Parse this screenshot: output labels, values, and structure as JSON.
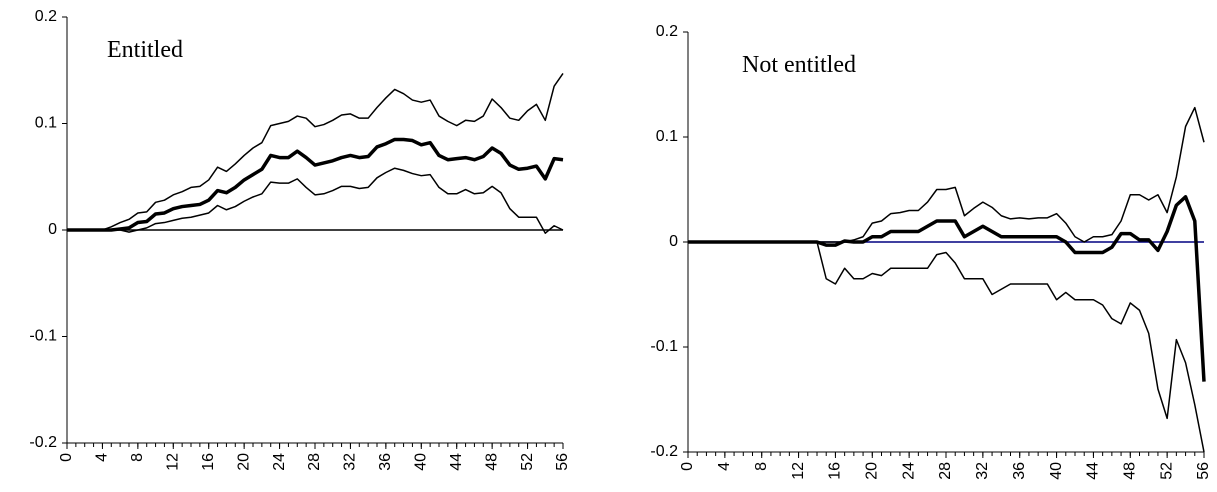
{
  "chart_data": [
    {
      "type": "line",
      "annotation": "Entitled",
      "zero_line_color": "#000000",
      "x": [
        0,
        1,
        2,
        3,
        4,
        5,
        6,
        7,
        8,
        9,
        10,
        11,
        12,
        13,
        14,
        15,
        16,
        17,
        18,
        19,
        20,
        21,
        22,
        23,
        24,
        25,
        26,
        27,
        28,
        29,
        30,
        31,
        32,
        33,
        34,
        35,
        36,
        37,
        38,
        39,
        40,
        41,
        42,
        43,
        44,
        45,
        46,
        47,
        48,
        49,
        50,
        51,
        52,
        53,
        54,
        55,
        56
      ],
      "xlim": [
        0,
        56
      ],
      "xticks": [
        0,
        4,
        8,
        12,
        16,
        20,
        24,
        28,
        32,
        36,
        40,
        44,
        48,
        52,
        56
      ],
      "xminorticks": [
        0,
        1,
        2,
        3,
        4,
        5,
        6,
        7,
        8,
        9,
        10,
        11,
        12,
        13,
        14,
        15,
        16,
        17,
        18,
        19,
        20,
        21,
        22,
        23,
        24,
        25,
        26,
        27,
        28,
        29,
        30,
        31,
        32,
        33,
        34,
        35,
        36,
        37,
        38,
        39,
        40,
        41,
        42,
        43,
        44,
        45,
        46,
        47,
        48,
        49,
        50,
        51,
        52,
        53,
        54,
        55,
        56
      ],
      "ylim": [
        -0.2,
        0.2
      ],
      "yticks": [
        -0.2,
        -0.1,
        0,
        0.1,
        0.2
      ],
      "series": [
        {
          "color": "#000000",
          "width": 1.5,
          "values": [
            0,
            0,
            0,
            0,
            0,
            0.003,
            0.007,
            0.01,
            0.016,
            0.017,
            0.026,
            0.028,
            0.033,
            0.036,
            0.04,
            0.041,
            0.047,
            0.059,
            0.055,
            0.062,
            0.07,
            0.077,
            0.082,
            0.098,
            0.1,
            0.102,
            0.107,
            0.105,
            0.097,
            0.099,
            0.103,
            0.108,
            0.109,
            0.105,
            0.105,
            0.115,
            0.124,
            0.132,
            0.128,
            0.122,
            0.12,
            0.122,
            0.107,
            0.102,
            0.098,
            0.103,
            0.102,
            0.107,
            0.123,
            0.115,
            0.105,
            0.103,
            0.112,
            0.118,
            0.103,
            0.135,
            0.147
          ]
        },
        {
          "color": "#000000",
          "width": 3.5,
          "values": [
            0,
            0,
            0,
            0,
            0,
            0,
            0.001,
            0.002,
            0.007,
            0.008,
            0.015,
            0.016,
            0.02,
            0.022,
            0.023,
            0.024,
            0.028,
            0.037,
            0.035,
            0.04,
            0.047,
            0.052,
            0.057,
            0.07,
            0.068,
            0.068,
            0.074,
            0.068,
            0.061,
            0.063,
            0.065,
            0.068,
            0.07,
            0.068,
            0.069,
            0.078,
            0.081,
            0.085,
            0.085,
            0.084,
            0.08,
            0.082,
            0.07,
            0.066,
            0.067,
            0.068,
            0.066,
            0.069,
            0.077,
            0.072,
            0.061,
            0.057,
            0.058,
            0.06,
            0.048,
            0.067,
            0.066
          ]
        },
        {
          "color": "#000000",
          "width": 1.5,
          "values": [
            0,
            0,
            0,
            0,
            0,
            0,
            0,
            -0.002,
            0,
            0.002,
            0.006,
            0.007,
            0.009,
            0.011,
            0.012,
            0.014,
            0.016,
            0.023,
            0.019,
            0.022,
            0.027,
            0.031,
            0.034,
            0.045,
            0.044,
            0.044,
            0.048,
            0.04,
            0.033,
            0.034,
            0.037,
            0.041,
            0.041,
            0.039,
            0.04,
            0.049,
            0.054,
            0.058,
            0.056,
            0.053,
            0.051,
            0.052,
            0.04,
            0.034,
            0.034,
            0.038,
            0.034,
            0.035,
            0.041,
            0.035,
            0.02,
            0.012,
            0.012,
            0.012,
            -0.003,
            0.004,
            0
          ]
        }
      ]
    },
    {
      "type": "line",
      "annotation": "Not entitled",
      "zero_line_color": "#000080",
      "x": [
        0,
        1,
        2,
        3,
        4,
        5,
        6,
        7,
        8,
        9,
        10,
        11,
        12,
        13,
        14,
        15,
        16,
        17,
        18,
        19,
        20,
        21,
        22,
        23,
        24,
        25,
        26,
        27,
        28,
        29,
        30,
        31,
        32,
        33,
        34,
        35,
        36,
        37,
        38,
        39,
        40,
        41,
        42,
        43,
        44,
        45,
        46,
        47,
        48,
        49,
        50,
        51,
        52,
        53,
        54,
        55,
        56
      ],
      "xlim": [
        0,
        56
      ],
      "xticks": [
        0,
        4,
        8,
        12,
        16,
        20,
        24,
        28,
        32,
        36,
        40,
        44,
        48,
        52,
        56
      ],
      "xminorticks": [
        0,
        1,
        2,
        3,
        4,
        5,
        6,
        7,
        8,
        9,
        10,
        11,
        12,
        13,
        14,
        15,
        16,
        17,
        18,
        19,
        20,
        21,
        22,
        23,
        24,
        25,
        26,
        27,
        28,
        29,
        30,
        31,
        32,
        33,
        34,
        35,
        36,
        37,
        38,
        39,
        40,
        41,
        42,
        43,
        44,
        45,
        46,
        47,
        48,
        49,
        50,
        51,
        52,
        53,
        54,
        55,
        56
      ],
      "ylim": [
        -0.2,
        0.2
      ],
      "yticks": [
        -0.2,
        -0.1,
        0,
        0.1,
        0.2
      ],
      "series": [
        {
          "color": "#000000",
          "width": 1.5,
          "values": [
            0,
            0,
            0,
            0,
            0,
            0,
            0,
            0,
            0,
            0,
            0,
            0,
            0,
            0,
            0,
            0,
            0,
            0,
            0.002,
            0.005,
            0.018,
            0.02,
            0.027,
            0.028,
            0.03,
            0.03,
            0.038,
            0.05,
            0.05,
            0.052,
            0.025,
            0.032,
            0.038,
            0.033,
            0.025,
            0.022,
            0.023,
            0.022,
            0.023,
            0.023,
            0.027,
            0.018,
            0.005,
            0,
            0.005,
            0.005,
            0.007,
            0.02,
            0.045,
            0.045,
            0.04,
            0.045,
            0.028,
            0.062,
            0.11,
            0.128,
            0.095
          ]
        },
        {
          "color": "#000000",
          "width": 3.5,
          "values": [
            0,
            0,
            0,
            0,
            0,
            0,
            0,
            0,
            0,
            0,
            0,
            0,
            0,
            0,
            0,
            -0.003,
            -0.003,
            0.001,
            0,
            0,
            0.005,
            0.005,
            0.01,
            0.01,
            0.01,
            0.01,
            0.015,
            0.02,
            0.02,
            0.02,
            0.005,
            0.01,
            0.015,
            0.01,
            0.005,
            0.005,
            0.005,
            0.005,
            0.005,
            0.005,
            0.005,
            0,
            -0.01,
            -0.01,
            -0.01,
            -0.01,
            -0.005,
            0.008,
            0.008,
            0.002,
            0.002,
            -0.008,
            0.01,
            0.035,
            0.043,
            0.02,
            -0.133
          ]
        },
        {
          "color": "#000000",
          "width": 1.5,
          "values": [
            0,
            0,
            0,
            0,
            0,
            0,
            0,
            0,
            0,
            0,
            0,
            0,
            0,
            0,
            0,
            -0.035,
            -0.04,
            -0.025,
            -0.035,
            -0.035,
            -0.03,
            -0.032,
            -0.025,
            -0.025,
            -0.025,
            -0.025,
            -0.025,
            -0.012,
            -0.01,
            -0.02,
            -0.035,
            -0.035,
            -0.035,
            -0.05,
            -0.045,
            -0.04,
            -0.04,
            -0.04,
            -0.04,
            -0.04,
            -0.055,
            -0.048,
            -0.055,
            -0.055,
            -0.055,
            -0.06,
            -0.073,
            -0.078,
            -0.058,
            -0.065,
            -0.087,
            -0.14,
            -0.168,
            -0.093,
            -0.115,
            -0.155,
            -0.2
          ]
        }
      ]
    }
  ]
}
